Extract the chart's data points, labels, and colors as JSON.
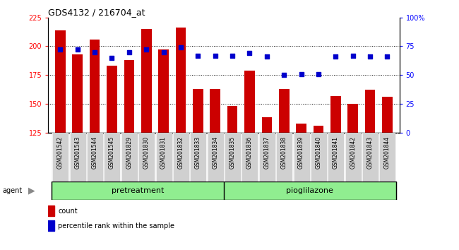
{
  "title": "GDS4132 / 216704_at",
  "samples": [
    "GSM201542",
    "GSM201543",
    "GSM201544",
    "GSM201545",
    "GSM201829",
    "GSM201830",
    "GSM201831",
    "GSM201832",
    "GSM201833",
    "GSM201834",
    "GSM201835",
    "GSM201836",
    "GSM201837",
    "GSM201838",
    "GSM201839",
    "GSM201840",
    "GSM201841",
    "GSM201842",
    "GSM201843",
    "GSM201844"
  ],
  "counts": [
    214,
    193,
    206,
    183,
    188,
    215,
    197,
    216,
    163,
    163,
    148,
    179,
    138,
    163,
    133,
    131,
    157,
    150,
    162,
    156
  ],
  "percentile": [
    72,
    72,
    70,
    65,
    70,
    72,
    70,
    74,
    67,
    67,
    67,
    69,
    66,
    50,
    51,
    51,
    66,
    67,
    66,
    66
  ],
  "group_boundary": 10,
  "group1_label": "pretreatment",
  "group2_label": "pioglilazone",
  "group_color": "#90EE90",
  "ylim_left": [
    125,
    225
  ],
  "ylim_right": [
    0,
    100
  ],
  "yticks_left": [
    125,
    150,
    175,
    200,
    225
  ],
  "yticks_right": [
    0,
    25,
    50,
    75,
    100
  ],
  "bar_color": "#CC0000",
  "dot_color": "#0000CC",
  "agent_label": "agent",
  "legend_count": "count",
  "legend_percentile": "percentile rank within the sample",
  "tick_bg_color": "#d0d0d0",
  "grid_yticks": [
    150,
    175,
    200
  ]
}
